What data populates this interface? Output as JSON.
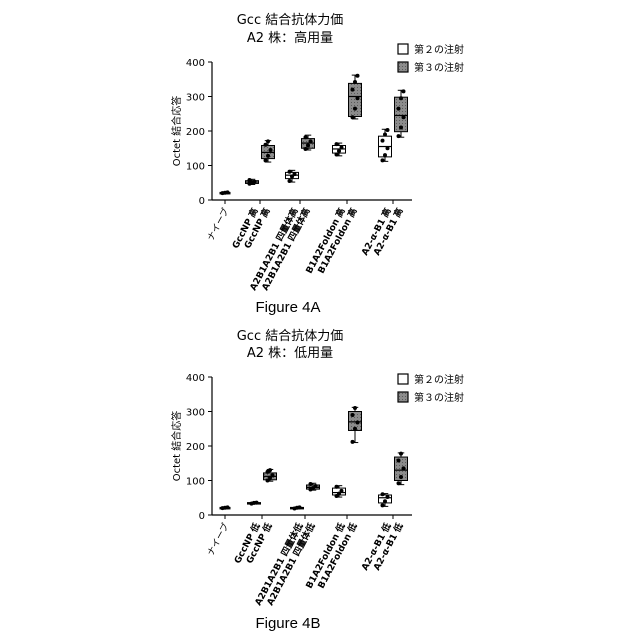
{
  "figures": [
    {
      "title": "Gcc 結合抗体力価",
      "subtitle": "A2 株：高用量",
      "caption": "Figure 4A"
    },
    {
      "title": "Gcc 結合抗体力価",
      "subtitle": "A2 株：低用量",
      "caption": "Figure 4B"
    }
  ],
  "colors": {
    "white_box": "#ffffff",
    "gray_box": "#8c8c8c",
    "line": "#000000"
  },
  "chart_data": [
    {
      "type": "box",
      "title": "Gcc 結合抗体力価",
      "subtitle": "A2 株：高用量",
      "ylabel": "Octet 結合応答",
      "ylim": [
        0,
        400
      ],
      "yticks": [
        0,
        100,
        200,
        300,
        400
      ],
      "legend": {
        "position": "top-right",
        "entries": [
          {
            "label": "第２の注射",
            "style": "white"
          },
          {
            "label": "第３の注射",
            "style": "gray"
          }
        ]
      },
      "categories": [
        "ナイーブ",
        "GccNP 高",
        "A2B1A2B1 四量体高",
        "B1A2Foldon 高",
        "A2-α-B1 高"
      ],
      "groups": [
        {
          "category": "ナイーブ",
          "series": "naive",
          "min": 19,
          "q1": 20,
          "median": 21,
          "q3": 22,
          "max": 23,
          "points": [
            20,
            21,
            22
          ]
        },
        {
          "category": "GccNP 高",
          "series": "第２の注射",
          "min": 45,
          "q1": 48,
          "median": 52,
          "q3": 56,
          "max": 60,
          "points": [
            47,
            50,
            53,
            58
          ]
        },
        {
          "category": "GccNP 高",
          "series": "第３の注射",
          "min": 110,
          "q1": 120,
          "median": 138,
          "q3": 158,
          "max": 172,
          "points": [
            115,
            128,
            145,
            160,
            170
          ]
        },
        {
          "category": "A2B1A2B1 四量体高",
          "series": "第２の注射",
          "min": 52,
          "q1": 62,
          "median": 72,
          "q3": 80,
          "max": 86,
          "points": [
            55,
            68,
            75,
            82
          ]
        },
        {
          "category": "A2B1A2B1 四量体高",
          "series": "第３の注射",
          "min": 145,
          "q1": 150,
          "median": 165,
          "q3": 178,
          "max": 188,
          "points": [
            148,
            158,
            170,
            182
          ]
        },
        {
          "category": "B1A2Foldon 高",
          "series": "第２の注射",
          "min": 128,
          "q1": 136,
          "median": 148,
          "q3": 158,
          "max": 165,
          "points": [
            132,
            142,
            152,
            162
          ]
        },
        {
          "category": "B1A2Foldon 高",
          "series": "第３の注射",
          "min": 235,
          "q1": 242,
          "median": 300,
          "q3": 338,
          "max": 362,
          "points": [
            240,
            265,
            295,
            320,
            342,
            360
          ]
        },
        {
          "category": "A2-α-B1 高",
          "series": "第２の注射",
          "min": 112,
          "q1": 125,
          "median": 155,
          "q3": 185,
          "max": 205,
          "points": [
            115,
            130,
            150,
            172,
            190,
            203
          ]
        },
        {
          "category": "A2-α-B1 高",
          "series": "第３の注射",
          "min": 182,
          "q1": 198,
          "median": 245,
          "q3": 298,
          "max": 318,
          "points": [
            185,
            210,
            240,
            265,
            295,
            315
          ]
        }
      ]
    },
    {
      "type": "box",
      "title": "Gcc 結合抗体力価",
      "subtitle": "A2 株：低用量",
      "ylabel": "Octet 結合応答",
      "ylim": [
        0,
        400
      ],
      "yticks": [
        0,
        100,
        200,
        300,
        400
      ],
      "legend": {
        "position": "top-right",
        "entries": [
          {
            "label": "第２の注射",
            "style": "white"
          },
          {
            "label": "第３の注射",
            "style": "gray"
          }
        ]
      },
      "categories": [
        "ナイーブ",
        "GccNP 低",
        "A2B1A2B1 四量体低",
        "B1A2Foldon 低",
        "A2-α-B1 低"
      ],
      "groups": [
        {
          "category": "ナイーブ",
          "series": "naive",
          "min": 19,
          "q1": 20,
          "median": 21,
          "q3": 22,
          "max": 23,
          "points": [
            20,
            21,
            22
          ]
        },
        {
          "category": "GccNP 低",
          "series": "第２の注射",
          "min": 32,
          "q1": 33,
          "median": 34,
          "q3": 36,
          "max": 37,
          "points": [
            33,
            35,
            36
          ]
        },
        {
          "category": "GccNP 低",
          "series": "第３の注射",
          "min": 98,
          "q1": 102,
          "median": 112,
          "q3": 122,
          "max": 132,
          "points": [
            100,
            108,
            115,
            125,
            130
          ]
        },
        {
          "category": "A2B1A2B1 四量体低",
          "series": "第２の注射",
          "min": 18,
          "q1": 19,
          "median": 20,
          "q3": 22,
          "max": 23,
          "points": [
            19,
            21,
            22
          ]
        },
        {
          "category": "A2B1A2B1 四量体低",
          "series": "第３の注射",
          "min": 72,
          "q1": 75,
          "median": 80,
          "q3": 87,
          "max": 92,
          "points": [
            74,
            78,
            84,
            90
          ]
        },
        {
          "category": "B1A2Foldon 低",
          "series": "第２の注射",
          "min": 52,
          "q1": 58,
          "median": 65,
          "q3": 78,
          "max": 85,
          "points": [
            55,
            62,
            70,
            82
          ]
        },
        {
          "category": "B1A2Foldon 低",
          "series": "第３の注射",
          "min": 210,
          "q1": 245,
          "median": 270,
          "q3": 300,
          "max": 312,
          "points": [
            212,
            250,
            268,
            290,
            310
          ]
        },
        {
          "category": "A2-α-B1 低",
          "series": "第２の注射",
          "min": 25,
          "q1": 35,
          "median": 50,
          "q3": 58,
          "max": 62,
          "points": [
            28,
            40,
            52,
            60
          ]
        },
        {
          "category": "A2-α-B1 低",
          "series": "第３の注射",
          "min": 88,
          "q1": 100,
          "median": 130,
          "q3": 168,
          "max": 180,
          "points": [
            92,
            110,
            135,
            158,
            178
          ]
        }
      ]
    }
  ]
}
